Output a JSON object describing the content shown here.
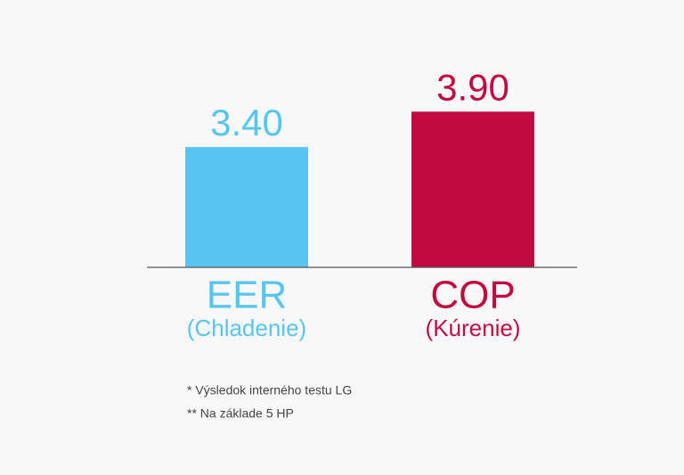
{
  "chart_data": {
    "type": "bar",
    "categories": [
      "EER",
      "COP"
    ],
    "sublabels": [
      "(Chladenie)",
      "(Kúrenie)"
    ],
    "values": [
      3.4,
      3.9
    ],
    "value_labels": [
      "3.40",
      "3.90"
    ],
    "colors": [
      "#58c5f0",
      "#c10b40"
    ],
    "ylim": [
      1.7,
      4.3
    ],
    "notes": [
      "* Výsledok interného testu LG",
      "** Na základe 5 HP"
    ]
  }
}
